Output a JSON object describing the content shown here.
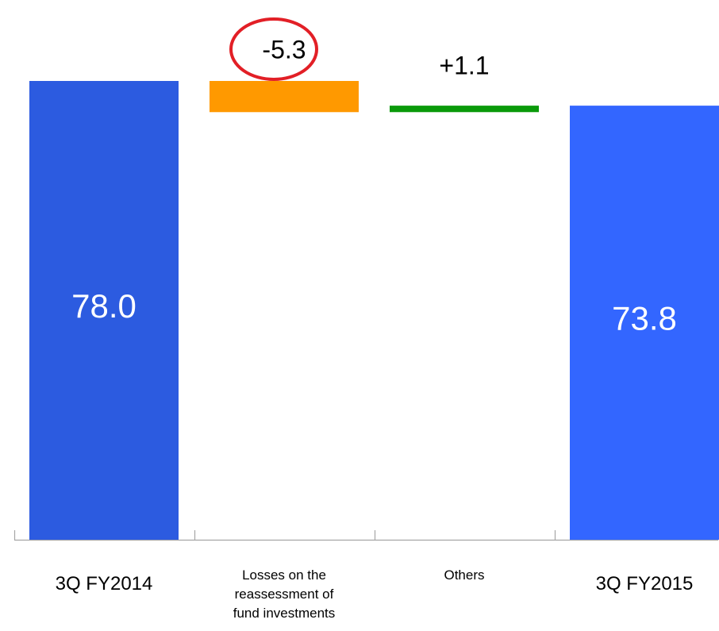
{
  "chart_data": {
    "type": "bar",
    "subtype": "waterfall",
    "categories": [
      "3Q FY2014",
      "Losses on the reassessment of fund investments",
      "Others",
      "3Q FY2015"
    ],
    "category_lines": [
      [
        "3Q FY2014"
      ],
      [
        "Losses on the",
        "reassessment of",
        "fund investments"
      ],
      [
        "Others"
      ],
      [
        "3Q FY2015"
      ]
    ],
    "values": [
      78.0,
      -5.3,
      1.1,
      73.8
    ],
    "data_labels": [
      "78.0",
      "-5.3",
      "+1.1",
      "73.8"
    ],
    "bar_kinds": [
      "total",
      "change",
      "change",
      "total"
    ],
    "colors": [
      "#2c5be0",
      "#ff9900",
      "#0a9a0a",
      "#3366ff"
    ],
    "highlight_index": 1,
    "highlight_color": "#e21f26",
    "ylim": [
      0,
      78.0
    ],
    "title": "",
    "xlabel": "",
    "ylabel": "",
    "grid": false,
    "legend": "none"
  }
}
